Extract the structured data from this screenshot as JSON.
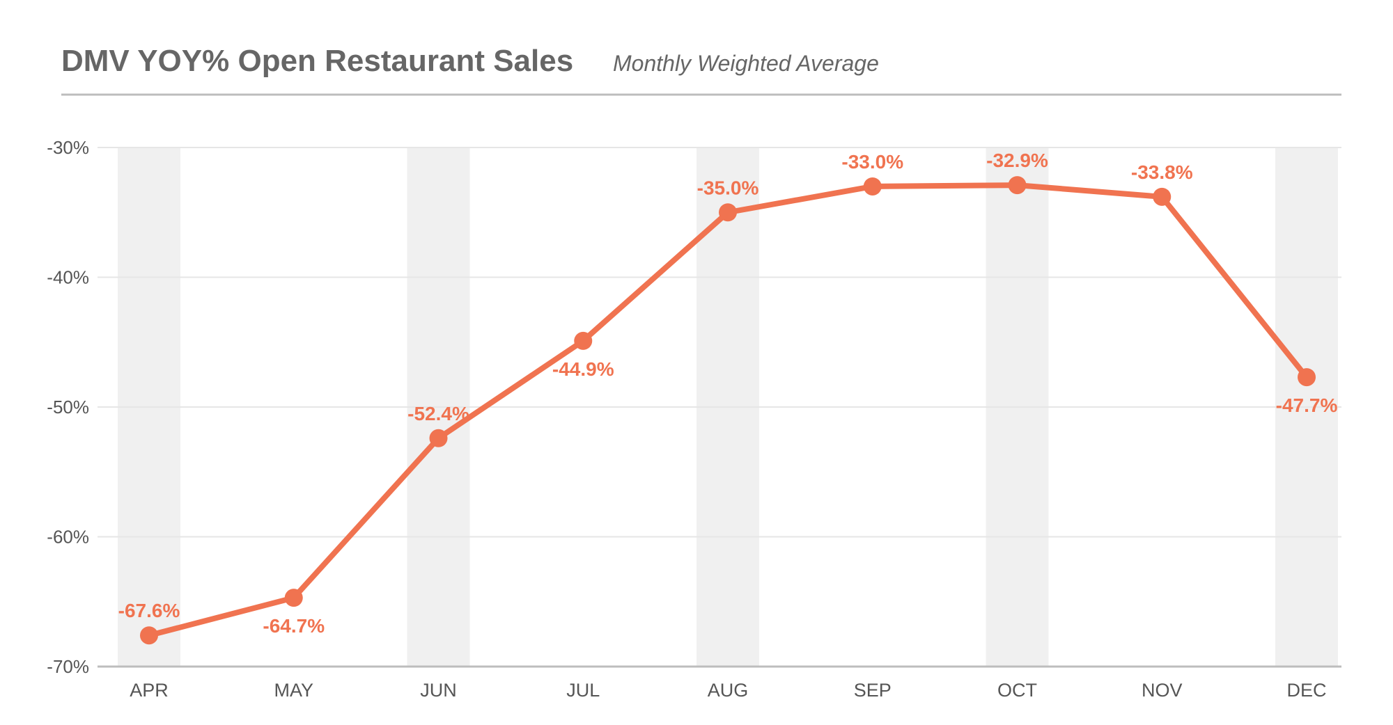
{
  "title": "DMV YOY% Open Restaurant Sales",
  "subtitle": "Monthly Weighted Average",
  "colors": {
    "line": "#f07350",
    "band": "#f0f0f0",
    "grid": "#e6e6e6",
    "axis": "#bdbdbd",
    "text": "#666666"
  },
  "chart_data": {
    "type": "line",
    "title": "DMV YOY% Open Restaurant Sales",
    "subtitle": "Monthly Weighted Average",
    "categories": [
      "APR",
      "MAY",
      "JUN",
      "JUL",
      "AUG",
      "SEP",
      "OCT",
      "NOV",
      "DEC"
    ],
    "series": [
      {
        "values": [
          -67.6,
          -64.7,
          -52.4,
          -44.9,
          -35.0,
          -33.0,
          -32.9,
          -33.8,
          -47.7
        ],
        "labels": [
          "-67.6%",
          "-64.7%",
          "-52.4%",
          "-44.9%",
          "-35.0%",
          "-33.0%",
          "-32.9%",
          "-33.8%",
          "-47.7%"
        ]
      }
    ],
    "yticks": [
      -30,
      -40,
      -50,
      -60,
      -70
    ],
    "ytick_labels": [
      "-30%",
      "-40%",
      "-50%",
      "-60%",
      "-70%"
    ],
    "ylim": [
      -70,
      -30
    ],
    "grid": true,
    "alternating_column_bands": true
  }
}
